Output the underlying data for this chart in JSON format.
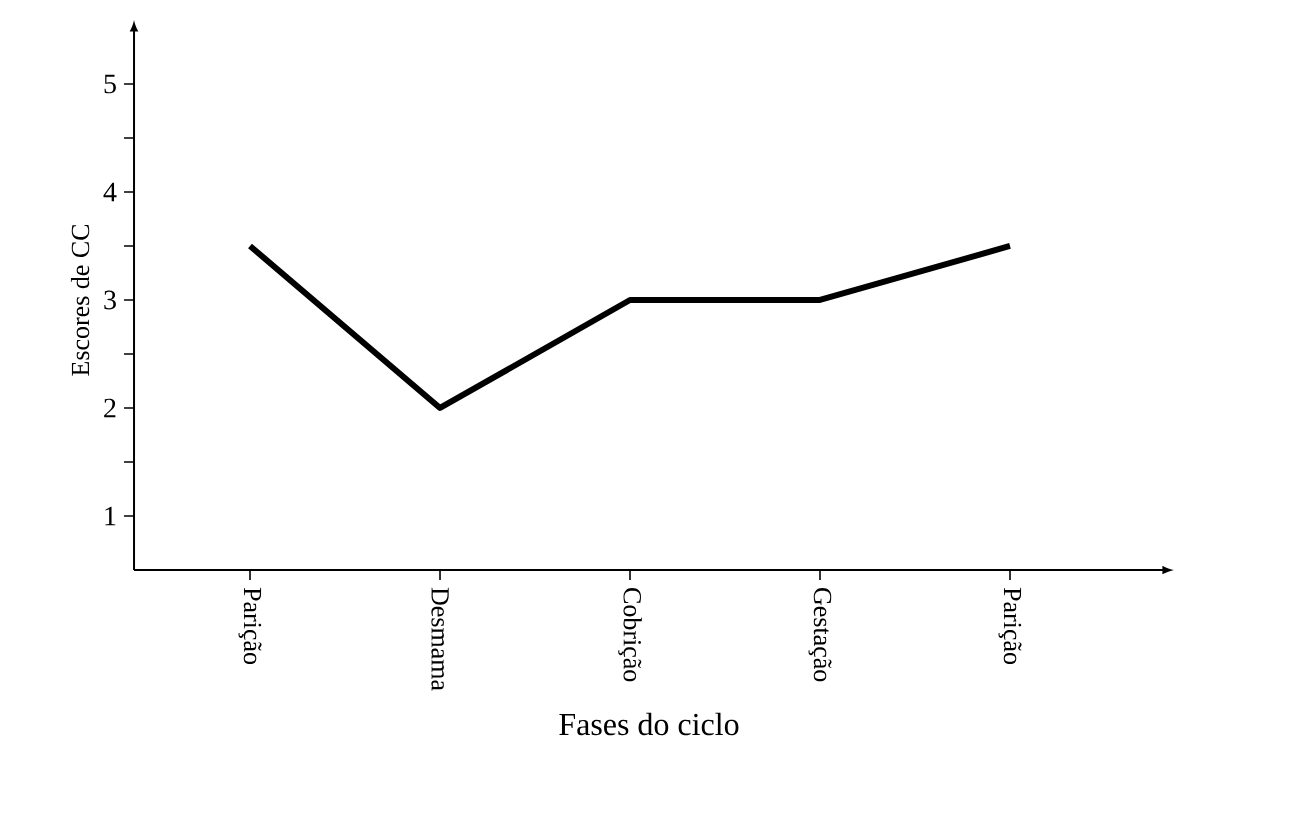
{
  "chart_data": {
    "type": "line",
    "xlabel": "Fases do ciclo",
    "ylabel": "Escores de CC",
    "categories": [
      "Parição",
      "Desmama",
      "Cobrição",
      "Gestação",
      "Parição"
    ],
    "values": [
      3.5,
      2,
      3,
      3,
      3.5
    ],
    "color": "#000000",
    "line_style": "solid",
    "ylim": [
      0.5,
      5.5
    ],
    "yticks": [
      1,
      {
        "value": 1.5,
        "label": null
      },
      2,
      {
        "value": 2.5,
        "label": null
      },
      3,
      {
        "value": 3.5,
        "label": null
      },
      4,
      {
        "value": 4.5,
        "label": null
      },
      5
    ]
  }
}
